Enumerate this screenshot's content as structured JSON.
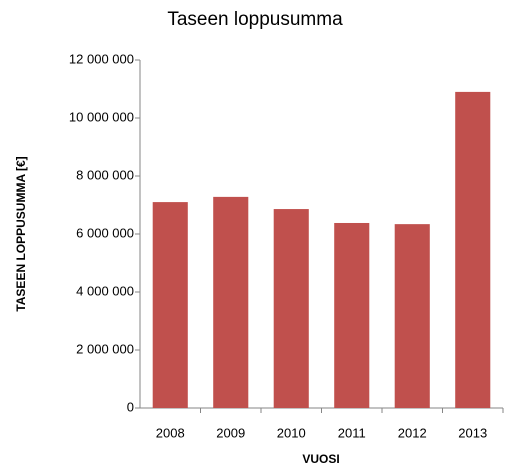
{
  "chart_data": {
    "type": "bar",
    "title": "Taseen loppusumma",
    "x_label": "VUOSI",
    "y_label": "TASEEN LOPPUSUMMA [€]",
    "categories": [
      "2008",
      "2009",
      "2010",
      "2011",
      "2012",
      "2013"
    ],
    "values": [
      7100000,
      7280000,
      6860000,
      6380000,
      6340000,
      10900000
    ],
    "color": "#c0504d",
    "ylim": [
      0,
      12000000
    ],
    "yticks": [
      0,
      {
        "value": 2000000,
        "label": "2 000 000"
      },
      {
        "value": 4000000,
        "label": "4 000 000"
      },
      {
        "value": 6000000,
        "label": "6 000 000"
      },
      {
        "value": 8000000,
        "label": "8 000 000"
      },
      {
        "value": 10000000,
        "label": "10 000 000"
      },
      {
        "value": 12000000,
        "label": "12 000 000"
      }
    ],
    "grid": false
  }
}
